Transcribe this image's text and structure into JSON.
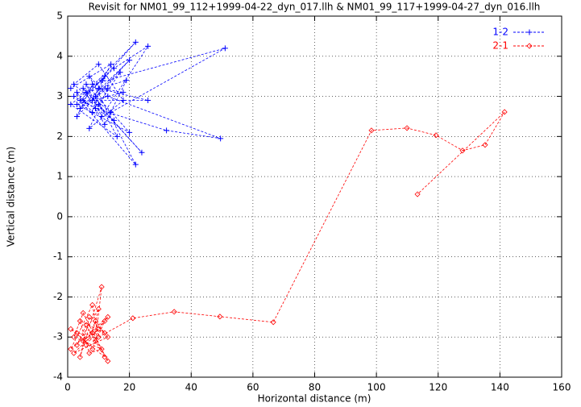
{
  "chart_data": {
    "type": "line",
    "title": "Revisit for NM01_99_112+1999-04-22_dyn_017.llh & NM01_99_117+1999-04-27_dyn_016.llh",
    "x_label": "Horizontal distance (m)",
    "y_label": "Vertical distance (m)",
    "xlim": [
      0,
      160
    ],
    "xticks": [
      0,
      20,
      40,
      60,
      80,
      100,
      120,
      140,
      160
    ],
    "ylim": [
      -4,
      5
    ],
    "yticks": [
      -4,
      -3,
      -2,
      -1,
      0,
      1,
      2,
      3,
      4,
      5
    ],
    "grid": true,
    "legend": "top-right",
    "series": [
      {
        "name": "1-2",
        "color": "#0000ff",
        "marker": "plus",
        "x": [
          3,
          8,
          12,
          5,
          15,
          2,
          10,
          18,
          7,
          13,
          4,
          20,
          9,
          16,
          1,
          11,
          22,
          6,
          14,
          51,
          8,
          3,
          17,
          10,
          24,
          5,
          12,
          19,
          2,
          9,
          32,
          49.5,
          13,
          7,
          22,
          4,
          15,
          26,
          11,
          6,
          20,
          3,
          18,
          10,
          26,
          8,
          14,
          1
        ],
        "values": [
          3.1,
          2.6,
          3.5,
          2.9,
          2.4,
          3.3,
          3.8,
          2.9,
          2.2,
          3.2,
          2.7,
          3.9,
          3.0,
          2.0,
          2.8,
          3.4,
          4.35,
          3.1,
          2.6,
          4.2,
          3.3,
          2.5,
          3.6,
          2.8,
          1.6,
          3.2,
          2.3,
          3.4,
          3.0,
          2.7,
          2.15,
          1.95,
          3.0,
          3.5,
          1.3,
          2.9,
          3.7,
          4.25,
          2.5,
          3.3,
          2.1,
          2.8,
          3.1,
          3.2,
          2.9,
          2.9,
          3.8,
          3.2
        ]
      },
      {
        "name": "2-1",
        "color": "#ff0000",
        "marker": "diamond",
        "x": [
          3,
          8,
          12,
          5,
          10,
          2,
          13,
          7,
          4,
          11,
          9,
          1,
          12,
          6,
          3,
          10,
          8,
          13,
          5,
          2,
          11,
          7,
          4,
          12,
          9,
          6,
          13,
          1,
          8,
          10,
          21.1,
          34.5,
          49.3,
          66.6,
          98.4,
          109.9,
          119.3,
          127.9,
          135.2,
          141.5,
          113.3
        ],
        "values": [
          -2.9,
          -3.3,
          -2.6,
          -3.1,
          -2.8,
          -3.4,
          -3.0,
          -2.5,
          -3.5,
          -1.75,
          -3.1,
          -2.8,
          -3.5,
          -2.7,
          -3.2,
          -2.3,
          -2.9,
          -3.6,
          -2.4,
          -3.0,
          -3.3,
          -3.4,
          -2.6,
          -2.9,
          -2.6,
          -3.2,
          -2.5,
          -3.3,
          -2.2,
          -3.0,
          -2.53,
          -2.37,
          -2.49,
          -2.63,
          2.15,
          2.21,
          2.03,
          1.65,
          1.79,
          2.61,
          0.56
        ]
      }
    ]
  }
}
